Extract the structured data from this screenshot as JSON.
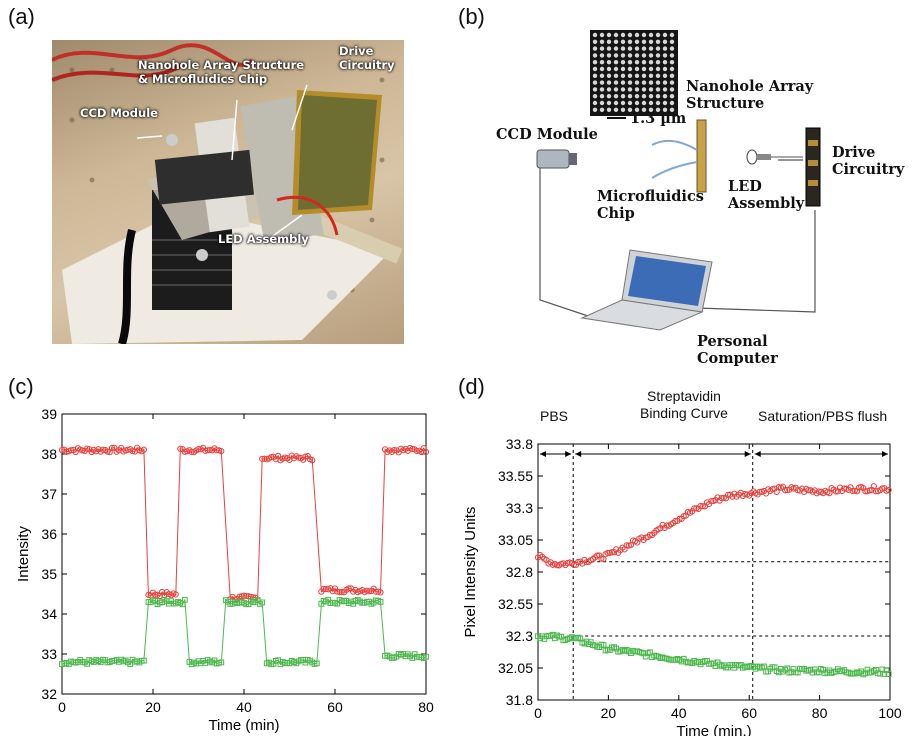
{
  "panels": {
    "a": {
      "label": "(a)",
      "photo_labels": {
        "drive": "Drive\nCircuitry",
        "nanohole": "Nanohole Array Structure\n& Microfluidics Chip",
        "ccd": "CCD Module",
        "led": "LED Assembly"
      }
    },
    "b": {
      "label": "(b)",
      "nanohole": "Nanohole Array\nStructure",
      "scale": "1.3 µm",
      "ccd": "CCD Module",
      "drive": "Drive\nCircuitry",
      "microfluidics": "Microfluidics\nChip",
      "led": "LED\nAssembly",
      "pc": "Personal\nComputer"
    },
    "c": {
      "label": "(c)"
    },
    "d": {
      "label": "(d)",
      "phases": [
        "PBS",
        "Streptavidin\nBinding Curve",
        "Saturation/PBS flush"
      ]
    }
  },
  "chart_data": [
    {
      "type": "line",
      "xlabel": "Time (min)",
      "ylabel": "Intensity",
      "xlim": [
        0,
        80
      ],
      "ylim": [
        32,
        39
      ],
      "xticks": [
        "0",
        "20",
        "40",
        "60",
        "80"
      ],
      "yticks": [
        "32",
        "33",
        "34",
        "35",
        "36",
        "37",
        "38",
        "39"
      ],
      "series": [
        {
          "color": "#e8403c",
          "marker": "circle",
          "segments": [
            {
              "x0": 0,
              "x1": 18,
              "y": 38.1
            },
            {
              "x0": 19,
              "x1": 25,
              "y": 34.5
            },
            {
              "x0": 26,
              "x1": 35,
              "y": 38.1
            },
            {
              "x0": 37,
              "x1": 43,
              "y": 34.4
            },
            {
              "x0": 44,
              "x1": 55,
              "y": 37.9
            },
            {
              "x0": 57,
              "x1": 70,
              "y": 34.6
            },
            {
              "x0": 71,
              "x1": 80,
              "y": 38.1
            }
          ]
        },
        {
          "color": "#4cb84c",
          "marker": "square",
          "segments": [
            {
              "x0": 0,
              "x1": 18,
              "y": 32.8
            },
            {
              "x0": 19,
              "x1": 27,
              "y": 34.3
            },
            {
              "x0": 28,
              "x1": 35,
              "y": 32.8
            },
            {
              "x0": 36,
              "x1": 44,
              "y": 34.3
            },
            {
              "x0": 45,
              "x1": 56,
              "y": 32.8
            },
            {
              "x0": 57,
              "x1": 70,
              "y": 34.3
            },
            {
              "x0": 71,
              "x1": 80,
              "y": 32.95
            }
          ]
        }
      ]
    },
    {
      "type": "scatter",
      "xlabel": "Time (min.)",
      "ylabel": "Pixel Intensity Units",
      "xlim": [
        0,
        100
      ],
      "ylim": [
        31.8,
        33.8
      ],
      "xticks": [
        "0",
        "20",
        "40",
        "60",
        "80",
        "100"
      ],
      "yticks": [
        "31.8",
        "32.05",
        "32.3",
        "32.55",
        "32.8",
        "33.05",
        "33.3",
        "33.55",
        "33.8"
      ],
      "ytick_values": [
        31.8,
        32.05,
        32.3,
        32.55,
        32.8,
        33.05,
        33.3,
        33.55,
        33.8
      ],
      "vlines": [
        10,
        61
      ],
      "hlines": [
        32.88,
        32.3
      ],
      "series": [
        {
          "color": "#e8403c",
          "marker": "circle",
          "points": [
            [
              0,
              32.92
            ],
            [
              5,
              32.86
            ],
            [
              10,
              32.87
            ],
            [
              20,
              32.93
            ],
            [
              30,
              33.07
            ],
            [
              40,
              33.22
            ],
            [
              50,
              33.36
            ],
            [
              55,
              33.4
            ],
            [
              61,
              33.42
            ],
            [
              70,
              33.45
            ],
            [
              80,
              33.43
            ],
            [
              90,
              33.45
            ],
            [
              100,
              33.45
            ]
          ]
        },
        {
          "color": "#4cb84c",
          "marker": "square",
          "points": [
            [
              0,
              32.3
            ],
            [
              10,
              32.28
            ],
            [
              20,
              32.2
            ],
            [
              30,
              32.16
            ],
            [
              40,
              32.12
            ],
            [
              50,
              32.08
            ],
            [
              61,
              32.05
            ],
            [
              70,
              32.03
            ],
            [
              80,
              32.03
            ],
            [
              90,
              32.02
            ],
            [
              100,
              32.02
            ]
          ]
        }
      ]
    }
  ]
}
